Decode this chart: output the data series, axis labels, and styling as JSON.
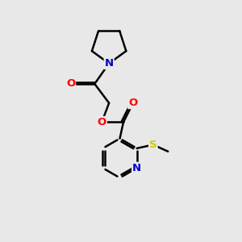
{
  "bg_color": "#e8e8e8",
  "atom_colors": {
    "N": "#0000cc",
    "O": "#ff0000",
    "S": "#cccc00"
  },
  "bond_color": "#000000",
  "bond_width": 1.8,
  "figsize": [
    3.0,
    3.0
  ],
  "dpi": 100,
  "xlim": [
    0,
    10
  ],
  "ylim": [
    0,
    10
  ]
}
